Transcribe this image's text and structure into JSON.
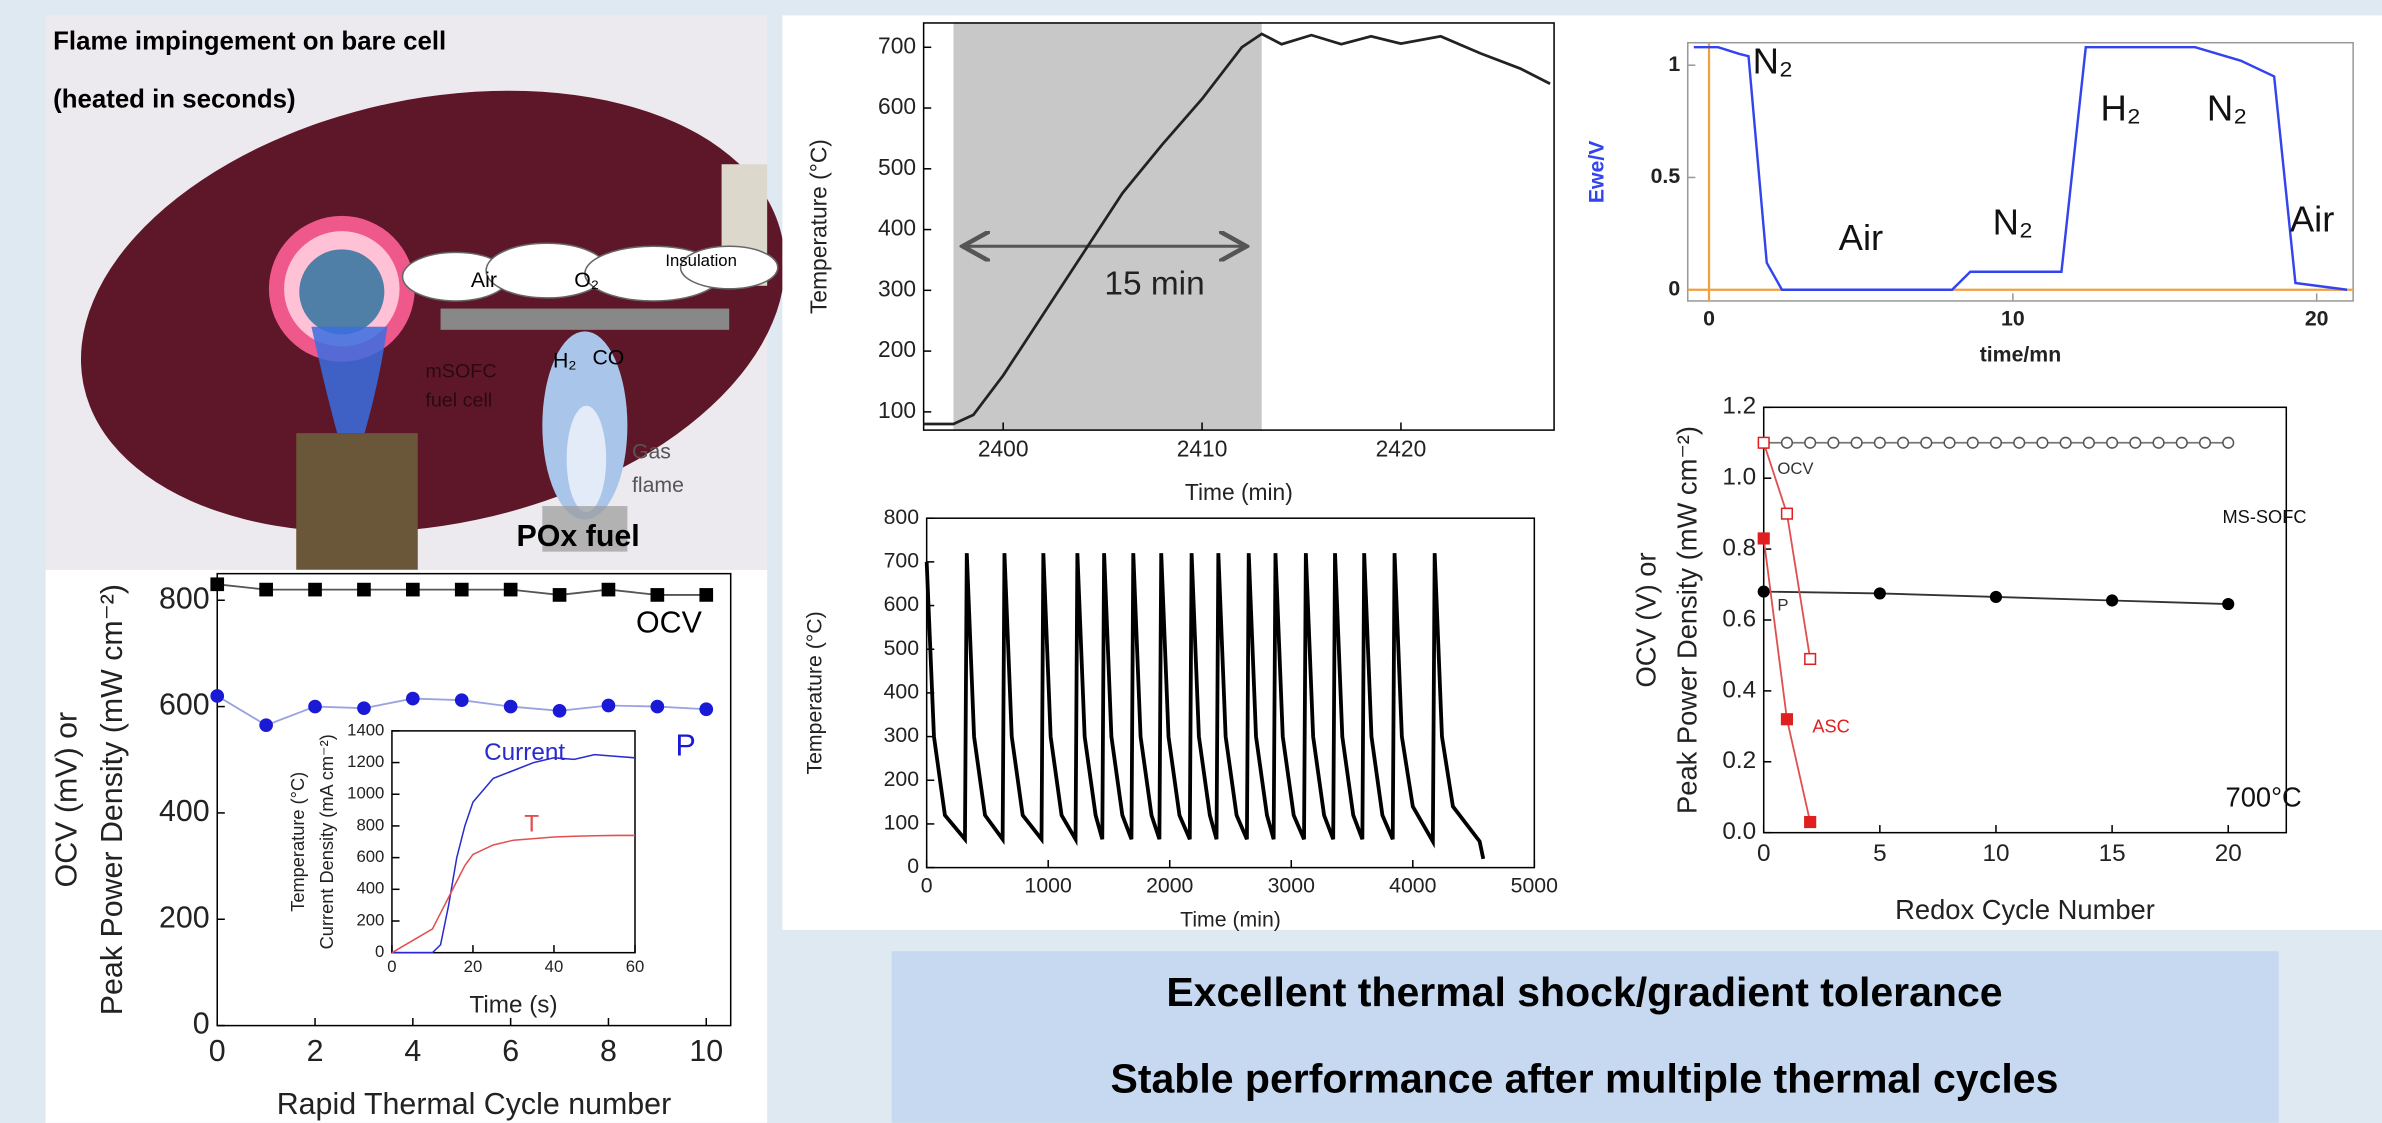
{
  "photo": {
    "title_lines": [
      "Flame impingement on bare cell",
      "(heated in seconds)"
    ],
    "labels": [
      "Air",
      "O₂",
      "Insulation",
      "mSOFC",
      "fuel cell",
      "H₂",
      "CO",
      "Gas",
      "flame",
      "POx fuel"
    ]
  },
  "footer": {
    "lines": [
      "Excellent thermal shock/gradient tolerance",
      "Stable performance after multiple thermal cycles"
    ]
  },
  "chart_data": [
    {
      "type": "line",
      "x": [
        0,
        1,
        2,
        3,
        4,
        5,
        6,
        7,
        8,
        9,
        10
      ],
      "xlim": [
        0,
        10.5
      ],
      "xticks": [
        0,
        2,
        4,
        6,
        8,
        10
      ],
      "ylim": [
        0,
        850
      ],
      "yticks": [
        0,
        200,
        400,
        600,
        800
      ],
      "x_label": "Rapid Thermal Cycle number",
      "y_label": [
        "OCV (mV) or",
        "Peak Power Density (mW cm⁻²)"
      ],
      "series": [
        {
          "name": "OCV",
          "color": "#000000",
          "line_color": "#555555",
          "marker": "square",
          "filled": true,
          "values": [
            830,
            820,
            820,
            820,
            820,
            820,
            820,
            810,
            820,
            810,
            810
          ]
        },
        {
          "name": "P",
          "color": "#1a1ad6",
          "line_color": "#9aa3e0",
          "marker": "circle",
          "filled": true,
          "values": [
            620,
            565,
            600,
            597,
            615,
            612,
            600,
            592,
            602,
            600,
            595
          ]
        }
      ]
    },
    {
      "type": "line",
      "x": [
        0,
        10,
        12,
        14,
        16,
        18,
        20,
        25,
        30,
        35,
        40,
        45,
        50,
        55,
        60
      ],
      "xlim": [
        0,
        60
      ],
      "xticks": [
        0,
        20,
        40,
        60
      ],
      "ylim": [
        0,
        1400
      ],
      "yticks": [
        0,
        200,
        400,
        600,
        800,
        1000,
        1200,
        1400
      ],
      "x_label": "Time (s)",
      "y_label": [
        "Temperature (°C)",
        "Current Density (mA cm⁻²)"
      ],
      "series": [
        {
          "name": "Current",
          "color": "#2a2ad0",
          "values": [
            0,
            0,
            50,
            300,
            600,
            800,
            950,
            1100,
            1150,
            1200,
            1230,
            1220,
            1250,
            1240,
            1230
          ]
        },
        {
          "name": "T",
          "color": "#e05050",
          "values": [
            0,
            150,
            250,
            350,
            450,
            550,
            620,
            680,
            710,
            720,
            730,
            735,
            738,
            740,
            740
          ]
        }
      ]
    },
    {
      "type": "line",
      "x": [
        2396,
        2397.5,
        2398.5,
        2400,
        2402,
        2404,
        2406,
        2408,
        2410,
        2412,
        2413,
        2414,
        2415.5,
        2417,
        2418.5,
        2420,
        2422,
        2424,
        2426,
        2427.5
      ],
      "xlim": [
        2396,
        2427.7
      ],
      "xticks": [
        2400,
        2410,
        2420
      ],
      "ylim": [
        70,
        740
      ],
      "yticks": [
        100,
        200,
        300,
        400,
        500,
        600,
        700
      ],
      "x_label": "Time (min)",
      "y_label": [
        "Temperature (°C)"
      ],
      "shade": [
        2397.5,
        2413
      ],
      "annotations": [
        "15 min"
      ],
      "series": [
        {
          "color": "#222222",
          "values": [
            80,
            80,
            95,
            160,
            260,
            360,
            460,
            540,
            615,
            700,
            722,
            705,
            720,
            705,
            718,
            706,
            718,
            690,
            665,
            640
          ]
        }
      ]
    },
    {
      "type": "line",
      "x": [
        0,
        60,
        150,
        315,
        330,
        390,
        480,
        625,
        640,
        700,
        790,
        945,
        960,
        1020,
        1110,
        1225,
        1240,
        1300,
        1390,
        1445,
        1460,
        1520,
        1610,
        1685,
        1700,
        1760,
        1850,
        1915,
        1930,
        1990,
        2080,
        2165,
        2180,
        2240,
        2330,
        2385,
        2400,
        2460,
        2550,
        2635,
        2650,
        2710,
        2800,
        2855,
        2870,
        2930,
        3020,
        3105,
        3120,
        3180,
        3270,
        3345,
        3360,
        3420,
        3510,
        3585,
        3600,
        3660,
        3750,
        3835,
        3850,
        3910,
        4000,
        4165,
        4180,
        4240,
        4330,
        4550,
        4580
      ],
      "xlim": [
        0,
        5000
      ],
      "xticks": [
        0,
        1000,
        2000,
        3000,
        4000,
        5000
      ],
      "ylim": [
        0,
        800
      ],
      "yticks": [
        0,
        100,
        200,
        300,
        400,
        500,
        600,
        700,
        800
      ],
      "x_label": "Time (min)",
      "y_label": [
        "Temperature (°C)"
      ],
      "series": [
        {
          "color": "#000000",
          "values": [
            700,
            300,
            120,
            65,
            720,
            300,
            120,
            65,
            720,
            300,
            120,
            65,
            720,
            300,
            120,
            65,
            720,
            300,
            120,
            65,
            720,
            300,
            120,
            65,
            720,
            300,
            120,
            65,
            720,
            300,
            120,
            65,
            720,
            300,
            120,
            65,
            720,
            300,
            120,
            65,
            720,
            300,
            120,
            65,
            720,
            300,
            120,
            65,
            720,
            300,
            120,
            65,
            720,
            300,
            120,
            65,
            720,
            300,
            120,
            65,
            720,
            300,
            140,
            60,
            720,
            300,
            140,
            60,
            20
          ]
        }
      ]
    },
    {
      "type": "line",
      "x": [
        -0.5,
        0.3,
        1.0,
        1.3,
        1.9,
        2.4,
        8.0,
        8.6,
        11.6,
        12.4,
        16.0,
        17.5,
        18.6,
        19.3,
        21.0
      ],
      "xlim": [
        -0.7,
        21.2
      ],
      "xticks": [
        0,
        10,
        20
      ],
      "ylim": [
        -0.05,
        1.1
      ],
      "yticks": [
        0,
        0.5,
        1
      ],
      "x_label": "time/mn",
      "y_label": [
        "Ewe/V"
      ],
      "ref_color": "#f0a040",
      "annotations": [
        "N₂",
        "Air",
        "N₂",
        "H₂",
        "N₂",
        "Air"
      ],
      "series": [
        {
          "color": "#3344ee",
          "values": [
            1.08,
            1.08,
            1.05,
            1.04,
            0.12,
            0.0,
            0.0,
            0.08,
            0.08,
            1.08,
            1.08,
            1.02,
            0.95,
            0.03,
            0.0
          ]
        }
      ]
    },
    {
      "type": "line",
      "xlim": [
        0,
        22.5
      ],
      "xticks": [
        0,
        5,
        10,
        15,
        20
      ],
      "ylim": [
        0,
        1.2
      ],
      "yticks": [
        {
          "value": 0,
          "label": "0.0"
        },
        0.2,
        0.4,
        0.6,
        0.8,
        {
          "value": 1,
          "label": "1.0"
        },
        1.2
      ],
      "x_label": "Redox Cycle Number",
      "y_label": [
        "OCV (V) or",
        "Peak Power Density (mW cm⁻²)"
      ],
      "annotations": [
        "OCV",
        "P",
        "MS-SOFC",
        "ASC",
        "700°C"
      ],
      "series": [
        {
          "color": "#555555",
          "line_color": "#777777",
          "marker": "circle",
          "filled": false,
          "x": [
            0,
            1,
            2,
            3,
            4,
            5,
            6,
            7,
            8,
            9,
            10,
            11,
            12,
            13,
            14,
            15,
            16,
            17,
            18,
            19,
            20
          ],
          "values": [
            1.1,
            1.1,
            1.1,
            1.1,
            1.1,
            1.1,
            1.1,
            1.1,
            1.1,
            1.1,
            1.1,
            1.1,
            1.1,
            1.1,
            1.1,
            1.1,
            1.1,
            1.1,
            1.1,
            1.1,
            1.1
          ]
        },
        {
          "color": "#000000",
          "line_color": "#333333",
          "marker": "circle",
          "filled": true,
          "x": [
            0,
            5,
            10,
            15,
            20
          ],
          "values": [
            0.68,
            0.675,
            0.665,
            0.655,
            0.645
          ]
        },
        {
          "color": "#e02020",
          "line_color": "#e05050",
          "marker": "square",
          "filled": false,
          "x": [
            0,
            1,
            2
          ],
          "values": [
            1.1,
            0.9,
            0.49
          ]
        },
        {
          "color": "#e02020",
          "line_color": "#e05050",
          "marker": "square",
          "filled": true,
          "x": [
            0,
            1,
            2
          ],
          "values": [
            0.83,
            0.32,
            0.03
          ]
        }
      ]
    }
  ]
}
